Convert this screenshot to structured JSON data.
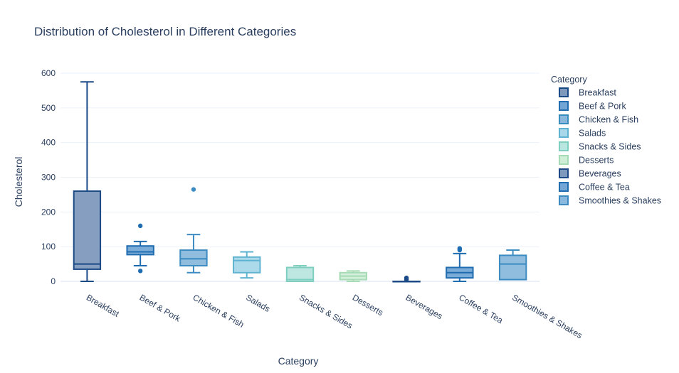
{
  "chart_data": {
    "type": "box",
    "title": "Distribution of Cholesterol in Different Categories",
    "xlabel": "Category",
    "ylabel": "Cholesterol",
    "ylim": [
      0,
      600
    ],
    "yticks": [
      0,
      100,
      200,
      300,
      400,
      500,
      600
    ],
    "grid": true,
    "legend_title": "Category",
    "legend_position": "right",
    "categories": [
      "Breakfast",
      "Beef & Pork",
      "Chicken & Fish",
      "Salads",
      "Snacks & Sides",
      "Desserts",
      "Beverages",
      "Coffee & Tea",
      "Smoothies & Shakes"
    ],
    "series": [
      {
        "name": "Breakfast",
        "color": "#1c4a87",
        "fill": "#7f99bc",
        "min": 0,
        "q1": 35,
        "median": 50,
        "q3": 260,
        "max": 575,
        "outliers": []
      },
      {
        "name": "Beef & Pork",
        "color": "#1f6db0",
        "fill": "#74a6d5",
        "min": 45,
        "q1": 77,
        "median": 85,
        "q3": 102,
        "max": 115,
        "outliers": [
          160,
          30
        ]
      },
      {
        "name": "Chicken & Fish",
        "color": "#3c8cc2",
        "fill": "#8ab8dc",
        "min": 25,
        "q1": 45,
        "median": 65,
        "q3": 90,
        "max": 135,
        "outliers": [
          265
        ]
      },
      {
        "name": "Salads",
        "color": "#5fb3d1",
        "fill": "#a9d8ea",
        "min": 10,
        "q1": 25,
        "median": 60,
        "q3": 70,
        "max": 85,
        "outliers": []
      },
      {
        "name": "Snacks & Sides",
        "color": "#7fcfc1",
        "fill": "#b9e6de",
        "min": 0,
        "q1": 0,
        "median": 5,
        "q3": 40,
        "max": 45,
        "outliers": []
      },
      {
        "name": "Desserts",
        "color": "#a6dbb5",
        "fill": "#cfeed8",
        "min": 0,
        "q1": 5,
        "median": 15,
        "q3": 25,
        "max": 30,
        "outliers": []
      },
      {
        "name": "Beverages",
        "color": "#1c4a87",
        "fill": "#7f99bc",
        "min": 0,
        "q1": 0,
        "median": 0,
        "q3": 0,
        "max": 0,
        "outliers": [
          5,
          10
        ]
      },
      {
        "name": "Coffee & Tea",
        "color": "#1f6db0",
        "fill": "#74a6d5",
        "min": 0,
        "q1": 10,
        "median": 25,
        "q3": 40,
        "max": 80,
        "outliers": [
          90,
          95
        ]
      },
      {
        "name": "Smoothies & Shakes",
        "color": "#3c8cc2",
        "fill": "#8ab8dc",
        "min": 5,
        "q1": 5,
        "median": 50,
        "q3": 75,
        "max": 90,
        "outliers": []
      }
    ]
  }
}
